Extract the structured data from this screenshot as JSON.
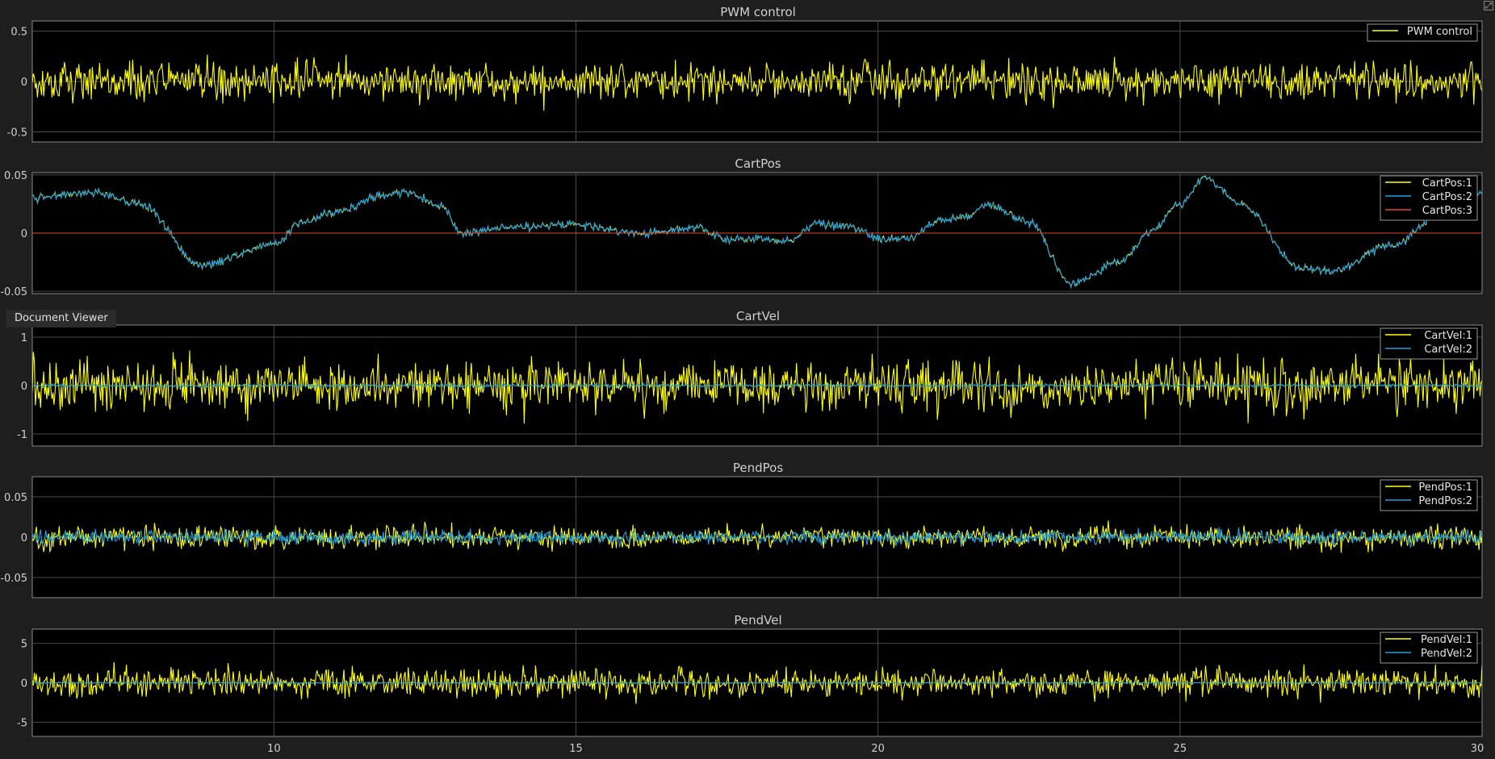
{
  "window": {
    "tooltip": "Document Viewer",
    "corner_icon": "undock-icon"
  },
  "colors": {
    "background": "#1e1e1e",
    "axes": "#000000",
    "grid": "#4a4a4a",
    "axes_border": "#8a8a8a",
    "text": "#d0d0d0",
    "series_yellow": "#ffff0d",
    "series_blue": "#1ea0e6",
    "series_red": "#e34a2a"
  },
  "chart_data": [
    {
      "type": "line",
      "title": "PWM control",
      "xlim": [
        6,
        30
      ],
      "ylim": [
        -0.6,
        0.6
      ],
      "yticks": [
        0.5,
        0,
        -0.5
      ],
      "ytick_labels": [
        "0.5",
        "0",
        "-0.5"
      ],
      "grid": true,
      "legend_position": "top-right",
      "series": [
        {
          "name": "PWM control",
          "color": "#ffff0d",
          "signal": {
            "kind": "noise",
            "amplitude": 0.17
          }
        }
      ]
    },
    {
      "type": "line",
      "title": "CartPos",
      "xlim": [
        6,
        30
      ],
      "ylim": [
        -0.052,
        0.052
      ],
      "yticks": [
        0.05,
        0,
        -0.05
      ],
      "ytick_labels": [
        "0.05",
        "0",
        "-0.05"
      ],
      "grid": true,
      "legend_position": "top-right",
      "series": [
        {
          "name": "CartPos:1",
          "color": "#ffff0d",
          "signal": {
            "kind": "trace",
            "x": [
              6,
              7,
              7.8,
              8.8,
              10,
              10.5,
              11,
              11.8,
              12.2,
              12.8,
              13.1,
              14,
              15,
              16,
              17,
              17.5,
              18.5,
              19,
              19.5,
              20,
              20.5,
              21,
              21.5,
              21.8,
              22.5,
              23.2,
              24,
              24.5,
              25,
              25.4,
              26,
              27,
              27.5,
              28.5,
              29.5,
              30
            ],
            "y": [
              0.03,
              0.035,
              0.025,
              -0.028,
              -0.01,
              0.01,
              0.018,
              0.033,
              0.035,
              0.022,
              0.0,
              0.005,
              0.008,
              0.0,
              0.005,
              -0.005,
              -0.006,
              0.008,
              0.006,
              -0.005,
              -0.005,
              0.01,
              0.015,
              0.025,
              0.01,
              -0.043,
              -0.025,
              0.0,
              0.025,
              0.048,
              0.025,
              -0.03,
              -0.033,
              -0.01,
              0.025,
              0.035
            ],
            "noise": 0.0035
          }
        },
        {
          "name": "CartPos:2",
          "color": "#1ea0e6",
          "signal": {
            "kind": "follow",
            "of": 0,
            "noise": 0.0012
          }
        },
        {
          "name": "CartPos:3",
          "color": "#e34a2a",
          "signal": {
            "kind": "constant",
            "value": 0
          }
        }
      ]
    },
    {
      "type": "line",
      "title": "CartVel",
      "xlim": [
        6,
        30
      ],
      "ylim": [
        -1.25,
        1.25
      ],
      "yticks": [
        1,
        0,
        -1
      ],
      "ytick_labels": [
        "1",
        "0",
        "-1"
      ],
      "grid": true,
      "legend_position": "top-right",
      "series": [
        {
          "name": "CartVel:1",
          "color": "#ffff0d",
          "signal": {
            "kind": "noise",
            "amplitude": 0.45
          }
        },
        {
          "name": "CartVel:2",
          "color": "#1ea0e6",
          "signal": {
            "kind": "noise",
            "amplitude": 0.03
          }
        }
      ]
    },
    {
      "type": "line",
      "title": "PendPos",
      "xlim": [
        6,
        30
      ],
      "ylim": [
        -0.075,
        0.075
      ],
      "yticks": [
        0.05,
        0,
        -0.05
      ],
      "ytick_labels": [
        "0.05",
        "0",
        "-0.05"
      ],
      "grid": true,
      "legend_position": "top-right",
      "series": [
        {
          "name": "PendPos:1",
          "color": "#ffff0d",
          "signal": {
            "kind": "noise",
            "amplitude": 0.012
          }
        },
        {
          "name": "PendPos:2",
          "color": "#1ea0e6",
          "signal": {
            "kind": "noise",
            "amplitude": 0.008
          }
        }
      ]
    },
    {
      "type": "line",
      "title": "PendVel",
      "xlim": [
        6,
        30
      ],
      "ylim": [
        -6.8,
        6.8
      ],
      "yticks": [
        5,
        0,
        -5
      ],
      "ytick_labels": [
        "5",
        "0",
        "-5"
      ],
      "xticks": [
        10,
        15,
        20,
        25,
        30
      ],
      "xtick_labels": [
        "10",
        "15",
        "20",
        "25",
        "30"
      ],
      "grid": true,
      "legend_position": "top-right",
      "series": [
        {
          "name": "PendVel:1",
          "color": "#ffff0d",
          "signal": {
            "kind": "noise",
            "amplitude": 1.6
          }
        },
        {
          "name": "PendVel:2",
          "color": "#1ea0e6",
          "signal": {
            "kind": "noise",
            "amplitude": 0.08
          }
        }
      ]
    }
  ]
}
